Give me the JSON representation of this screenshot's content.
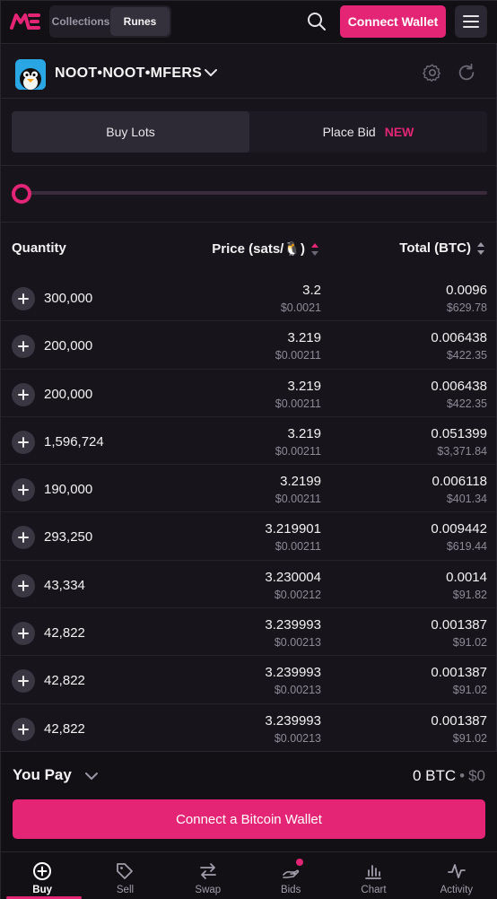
{
  "header": {
    "tabs": [
      {
        "label": "Collections",
        "active": false
      },
      {
        "label": "Runes",
        "active": true
      }
    ],
    "connect_label": "Connect Wallet"
  },
  "token": {
    "name": "NOOT•NOOT•MFERS"
  },
  "mode_tabs": [
    {
      "label": "Buy Lots",
      "active": true
    },
    {
      "label": "Place Bid",
      "active": false,
      "badge": "NEW"
    }
  ],
  "table": {
    "headers": {
      "quantity": "Quantity",
      "price": "Price (sats/🐧)",
      "total": "Total (BTC)"
    },
    "rows": [
      {
        "qty": "300,000",
        "price": "3.2",
        "price_usd": "$0.0021",
        "total": "0.0096",
        "total_usd": "$629.78"
      },
      {
        "qty": "200,000",
        "price": "3.219",
        "price_usd": "$0.00211",
        "total": "0.006438",
        "total_usd": "$422.35"
      },
      {
        "qty": "200,000",
        "price": "3.219",
        "price_usd": "$0.00211",
        "total": "0.006438",
        "total_usd": "$422.35"
      },
      {
        "qty": "1,596,724",
        "price": "3.219",
        "price_usd": "$0.00211",
        "total": "0.051399",
        "total_usd": "$3,371.84"
      },
      {
        "qty": "190,000",
        "price": "3.2199",
        "price_usd": "$0.00211",
        "total": "0.006118",
        "total_usd": "$401.34"
      },
      {
        "qty": "293,250",
        "price": "3.219901",
        "price_usd": "$0.00211",
        "total": "0.009442",
        "total_usd": "$619.44"
      },
      {
        "qty": "43,334",
        "price": "3.230004",
        "price_usd": "$0.00212",
        "total": "0.0014",
        "total_usd": "$91.82"
      },
      {
        "qty": "42,822",
        "price": "3.239993",
        "price_usd": "$0.00213",
        "total": "0.001387",
        "total_usd": "$91.02"
      },
      {
        "qty": "42,822",
        "price": "3.239993",
        "price_usd": "$0.00213",
        "total": "0.001387",
        "total_usd": "$91.02"
      },
      {
        "qty": "42,822",
        "price": "3.239993",
        "price_usd": "$0.00213",
        "total": "0.001387",
        "total_usd": "$91.02"
      }
    ]
  },
  "pay": {
    "label": "You Pay",
    "btc": "0 BTC",
    "separator": "•",
    "usd": "$0",
    "button_label": "Connect a Bitcoin Wallet"
  },
  "bottom_nav": [
    {
      "label": "Buy",
      "icon": "plus-circle-icon",
      "active": true
    },
    {
      "label": "Sell",
      "icon": "tag-icon",
      "active": false
    },
    {
      "label": "Swap",
      "icon": "swap-icon",
      "active": false
    },
    {
      "label": "Bids",
      "icon": "bid-hand-icon",
      "active": false
    },
    {
      "label": "Chart",
      "icon": "bar-chart-icon",
      "active": false
    },
    {
      "label": "Activity",
      "icon": "activity-icon",
      "active": false
    }
  ],
  "colors": {
    "accent": "#e42575",
    "background": "#17141c"
  }
}
